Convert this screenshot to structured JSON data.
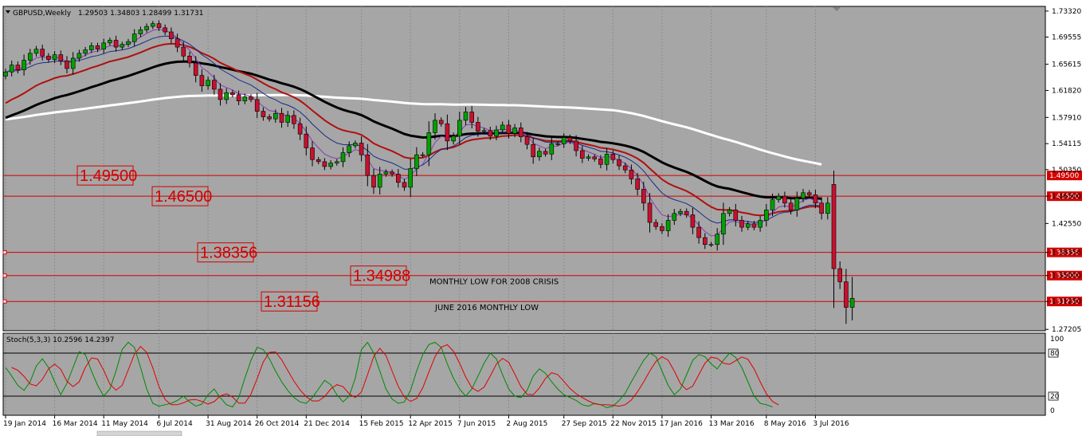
{
  "chart_data": {
    "type": "candlestick",
    "symbol_label": "GBPUSD,Weekly",
    "ohlc_label": "1.29503 1.34803 1.28499 1.31731",
    "colors": {
      "background": "#a6a6a6",
      "bull": "#00a000",
      "bear": "#c8102e",
      "wick": "#000000",
      "level_line": "#d40000",
      "ma_black": "#000000",
      "ma_white": "#ffffff",
      "ma_red": "#b01010",
      "ma_navy": "#1a2a8a",
      "ma_purple": "#8a3ab9",
      "stoch_main": "#008800",
      "stoch_signal": "#e00000"
    },
    "price_axis": {
      "ticks": [
        "1.73320",
        "1.69555",
        "1.65615",
        "1.61820",
        "1.57910",
        "1.54115",
        "1.50350",
        "1.46500",
        "1.42550",
        "1.38356",
        "1.35000",
        "1.31250",
        "1.27205"
      ],
      "ylim": [
        1.27,
        1.74
      ]
    },
    "time_axis": {
      "labels": [
        "19 Jan 2014",
        "16 Mar 2014",
        "11 May 2014",
        "6 Jul 2014",
        "31 Aug 2014",
        "26 Oct 2014",
        "21 Dec 2014",
        "15 Feb 2015",
        "12 Apr 2015",
        "7 Jun 2015",
        "2 Aug 2015",
        "27 Sep 2015",
        "22 Nov 2015",
        "17 Jan 2016",
        "13 Mar 2016",
        "8 May 2016",
        "3 Jul 2016"
      ]
    },
    "levels": [
      {
        "price": 1.495,
        "label": "1.49500",
        "tag": "1.49500"
      },
      {
        "price": 1.465,
        "label": "1.46500",
        "tag": "1.46500"
      },
      {
        "price": 1.38356,
        "label": "1.38356",
        "tag": "1.38356"
      },
      {
        "price": 1.35,
        "label": "1.34988",
        "tag": "1.35000",
        "note": "MONTHLY LOW FOR 2008 CRISIS"
      },
      {
        "price": 1.3125,
        "label": "1.31156",
        "tag": "1.31250",
        "note": "JUNE 2016 MONTHLY LOW"
      }
    ],
    "closes": [
      1.645,
      1.655,
      1.648,
      1.662,
      1.672,
      1.678,
      1.668,
      1.663,
      1.67,
      1.661,
      1.65,
      1.665,
      1.672,
      1.677,
      1.683,
      1.678,
      1.687,
      1.691,
      1.681,
      1.685,
      1.689,
      1.7,
      1.706,
      1.711,
      1.715,
      1.709,
      1.703,
      1.693,
      1.681,
      1.668,
      1.658,
      1.64,
      1.625,
      1.633,
      1.62,
      1.605,
      1.615,
      1.612,
      1.603,
      1.609,
      1.605,
      1.588,
      1.58,
      1.577,
      1.585,
      1.572,
      1.582,
      1.57,
      1.555,
      1.535,
      1.518,
      1.515,
      1.508,
      1.513,
      1.515,
      1.528,
      1.538,
      1.542,
      1.525,
      1.495,
      1.478,
      1.497,
      1.5,
      1.497,
      1.485,
      1.478,
      1.505,
      1.525,
      1.525,
      1.557,
      1.575,
      1.57,
      1.545,
      1.552,
      1.575,
      1.587,
      1.572,
      1.559,
      1.56,
      1.552,
      1.561,
      1.568,
      1.556,
      1.564,
      1.551,
      1.54,
      1.522,
      1.53,
      1.526,
      1.541,
      1.541,
      1.55,
      1.545,
      1.531,
      1.52,
      1.522,
      1.519,
      1.511,
      1.526,
      1.518,
      1.509,
      1.503,
      1.49,
      1.475,
      1.455,
      1.427,
      1.421,
      1.415,
      1.43,
      1.44,
      1.443,
      1.438,
      1.42,
      1.405,
      1.395,
      1.395,
      1.41,
      1.44,
      1.445,
      1.43,
      1.42,
      1.425,
      1.42,
      1.43,
      1.445,
      1.46,
      1.465,
      1.455,
      1.445,
      1.462,
      1.47,
      1.467,
      1.455,
      1.44,
      1.455,
      1.36,
      1.341,
      1.304,
      1.317
    ],
    "bear_last": {
      "open": 1.482,
      "high": 1.502,
      "low": 1.321,
      "close": 1.364
    },
    "stochastic": {
      "label": "Stoch(5,3,3) 10.2596 14.2397",
      "axis_ticks": [
        "100",
        "80",
        "20",
        "0"
      ],
      "levels": [
        80,
        20
      ],
      "main": [
        60,
        48,
        35,
        28,
        40,
        62,
        72,
        60,
        40,
        22,
        38,
        60,
        82,
        78,
        55,
        35,
        20,
        30,
        55,
        85,
        95,
        88,
        60,
        30,
        10,
        6,
        8,
        10,
        14,
        20,
        12,
        6,
        9,
        22,
        30,
        18,
        8,
        5,
        18,
        45,
        70,
        88,
        85,
        72,
        55,
        40,
        28,
        18,
        12,
        10,
        18,
        30,
        42,
        36,
        22,
        12,
        20,
        45,
        85,
        95,
        80,
        55,
        30,
        16,
        10,
        12,
        28,
        55,
        78,
        92,
        95,
        88,
        65,
        45,
        30,
        20,
        30,
        48,
        66,
        80,
        72,
        50,
        30,
        20,
        18,
        28,
        48,
        58,
        52,
        40,
        30,
        22,
        18,
        14,
        8,
        6,
        10,
        8,
        4,
        6,
        14,
        24,
        40,
        55,
        70,
        80,
        75,
        55,
        35,
        22,
        30,
        50,
        70,
        78,
        75,
        65,
        58,
        70,
        80,
        74,
        60,
        40,
        20,
        10,
        8,
        5
      ]
    }
  }
}
